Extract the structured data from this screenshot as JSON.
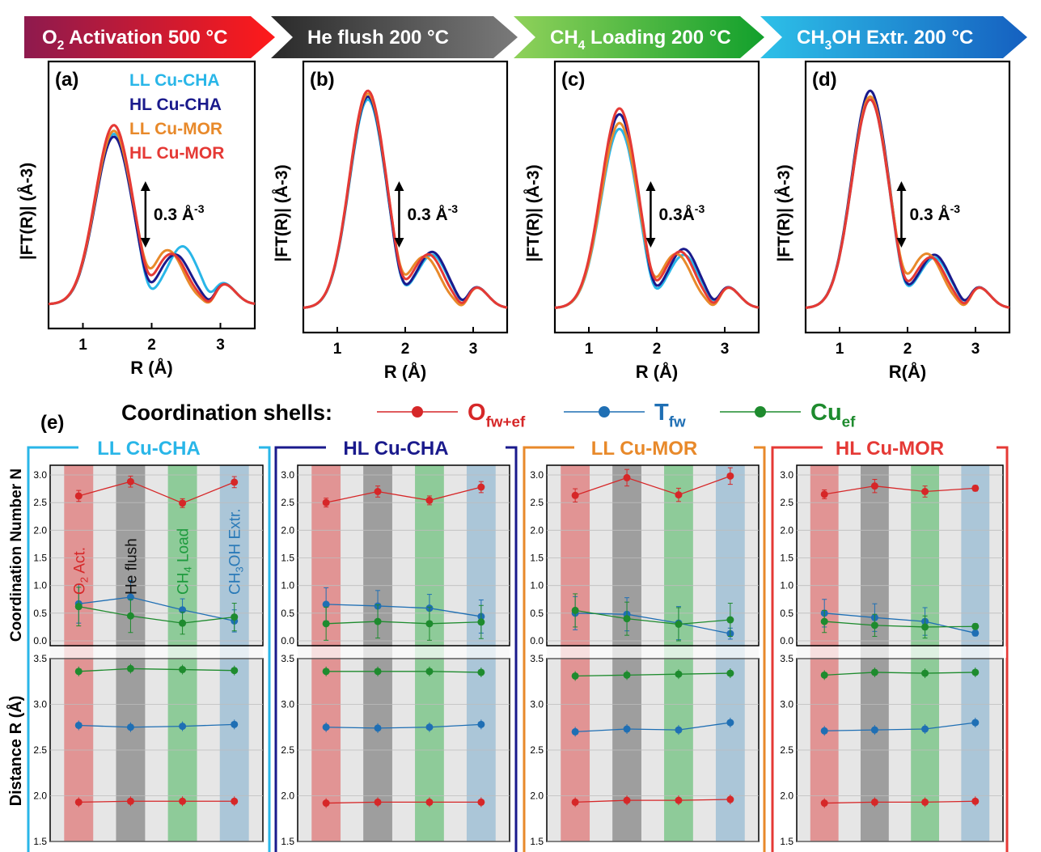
{
  "banner": {
    "steps": [
      {
        "label": "O2 Activation 500 °C",
        "sub": "2",
        "color": "#c0392b"
      },
      {
        "label": "He flush 200 °C",
        "color": "#4a4a4a"
      },
      {
        "label": "CH4 Loading 200 °C",
        "sub": "4",
        "color": "#3fae49"
      },
      {
        "label": "CH3OH Extr. 200 °C",
        "sub": "3",
        "color": "#1e88c8"
      }
    ]
  },
  "legend_top": {
    "entries": [
      {
        "name": "LL Cu-CHA",
        "color": "#29b6e8"
      },
      {
        "name": "HL Cu-CHA",
        "color": "#1a1a8c"
      },
      {
        "name": "LL Cu-MOR",
        "color": "#e8892a"
      },
      {
        "name": "HL Cu-MOR",
        "color": "#e53935"
      }
    ]
  },
  "ft_panels": [
    {
      "label": "(a)",
      "scale_label": "0.3 Å-3",
      "ylabel": "|FT(R)| (Å-3)",
      "xlabel": "R (Å)"
    },
    {
      "label": "(b)",
      "scale_label": "0.3 Å-3",
      "ylabel": "|FT(R)| (Å-3)",
      "xlabel": "R (Å)"
    },
    {
      "label": "(c)",
      "scale_label": "0.3Å-3",
      "ylabel": "|FT(R)| (Å-3)",
      "xlabel": "R (Å)"
    },
    {
      "label": "(d)",
      "scale_label": "0.3 Å-3",
      "ylabel": "|FT(R)| (Å-3)",
      "xlabel": "R(Å)"
    }
  ],
  "shells_legend": {
    "title": "Coordination shells:",
    "entries": [
      {
        "name": "O",
        "sub": "fw+ef",
        "color": "#d62728"
      },
      {
        "name": "T",
        "sub": "fw",
        "color": "#1f6fb4"
      },
      {
        "name": "Cu",
        "sub": "ef",
        "color": "#1e8b2e"
      }
    ]
  },
  "panel_e_label": "(e)",
  "cn_ylabel": "Coordination Number N",
  "dist_ylabel": "Distance R (Å)",
  "step_labels": [
    "O2 Act.",
    "He flush",
    "CH4 Load",
    "CH3OH Extr."
  ],
  "chart_data": [
    {
      "type": "line",
      "name": "FT(R) (a) O2 Activation",
      "x_ticks": [
        1,
        2,
        3
      ],
      "xlim": [
        0.5,
        3.5
      ],
      "series": [
        {
          "name": "LL Cu-CHA",
          "peak1": 2.95,
          "peak2_pos": 2.45,
          "peak2": 1.0
        },
        {
          "name": "HL Cu-CHA",
          "peak1": 2.9,
          "peak2_pos": 2.35,
          "peak2": 0.85
        },
        {
          "name": "LL Cu-MOR",
          "peak1": 3.0,
          "peak2_pos": 2.25,
          "peak2": 0.9
        },
        {
          "name": "HL Cu-MOR",
          "peak1": 3.1,
          "peak2_pos": 2.3,
          "peak2": 0.85
        }
      ]
    },
    {
      "type": "line",
      "name": "FT(R) (b) He flush",
      "x_ticks": [
        1,
        2,
        3
      ],
      "xlim": [
        0.5,
        3.5
      ],
      "series": [
        {
          "name": "LL Cu-CHA",
          "peak1": 3.55,
          "peak2_pos": 2.4,
          "peak2": 0.9
        },
        {
          "name": "HL Cu-CHA",
          "peak1": 3.6,
          "peak2_pos": 2.4,
          "peak2": 0.95
        },
        {
          "name": "LL Cu-MOR",
          "peak1": 3.65,
          "peak2_pos": 2.3,
          "peak2": 0.85
        },
        {
          "name": "HL Cu-MOR",
          "peak1": 3.7,
          "peak2_pos": 2.35,
          "peak2": 0.9
        }
      ]
    },
    {
      "type": "line",
      "name": "FT(R) (c) CH4 Loading",
      "x_ticks": [
        1,
        2,
        3
      ],
      "xlim": [
        0.5,
        3.5
      ],
      "series": [
        {
          "name": "LL Cu-CHA",
          "peak1": 3.05,
          "peak2_pos": 2.4,
          "peak2": 0.9
        },
        {
          "name": "HL Cu-CHA",
          "peak1": 3.3,
          "peak2_pos": 2.4,
          "peak2": 1.0
        },
        {
          "name": "LL Cu-MOR",
          "peak1": 3.15,
          "peak2_pos": 2.3,
          "peak2": 0.9
        },
        {
          "name": "HL Cu-MOR",
          "peak1": 3.4,
          "peak2_pos": 2.35,
          "peak2": 0.95
        }
      ]
    },
    {
      "type": "line",
      "name": "FT(R) (d) CH3OH Extraction",
      "x_ticks": [
        1,
        2,
        3
      ],
      "xlim": [
        0.5,
        3.5
      ],
      "series": [
        {
          "name": "LL Cu-CHA",
          "peak1": 3.55,
          "peak2_pos": 2.4,
          "peak2": 0.85
        },
        {
          "name": "HL Cu-CHA",
          "peak1": 3.7,
          "peak2_pos": 2.4,
          "peak2": 0.9
        },
        {
          "name": "LL Cu-MOR",
          "peak1": 3.6,
          "peak2_pos": 2.3,
          "peak2": 0.9
        },
        {
          "name": "HL Cu-MOR",
          "peak1": 3.55,
          "peak2_pos": 2.35,
          "peak2": 0.85
        }
      ]
    },
    {
      "type": "scatter",
      "name": "LL Cu-CHA",
      "frame": "#29b6e8",
      "title_color": "#29b6e8",
      "cn_ylim": [
        0,
        3.0
      ],
      "cn_ticks": [
        0.0,
        0.5,
        1.0,
        1.5,
        2.0,
        2.5,
        3.0
      ],
      "d_ylim": [
        1.5,
        3.5
      ],
      "d_ticks": [
        1.5,
        2.0,
        2.5,
        3.0,
        3.5
      ],
      "cn": {
        "O": [
          2.62,
          2.88,
          2.49,
          2.87
        ],
        "T": [
          0.67,
          0.79,
          0.56,
          0.36
        ],
        "Cu": [
          0.62,
          0.45,
          0.32,
          0.43
        ]
      },
      "cn_err": {
        "O": [
          0.1,
          0.1,
          0.08,
          0.1
        ],
        "T": [
          0.35,
          0.3,
          0.2,
          0.2
        ],
        "Cu": [
          0.35,
          0.3,
          0.2,
          0.25
        ]
      },
      "dist": {
        "O": [
          1.93,
          1.94,
          1.94,
          1.94
        ],
        "T": [
          2.77,
          2.75,
          2.76,
          2.78
        ],
        "Cu": [
          3.36,
          3.39,
          3.38,
          3.37
        ]
      }
    },
    {
      "type": "scatter",
      "name": "HL Cu-CHA",
      "frame": "#1a1a8c",
      "title_color": "#1a1a8c",
      "cn_ylim": [
        0,
        3.0
      ],
      "cn_ticks": [
        0.0,
        0.5,
        1.0,
        1.5,
        2.0,
        2.5,
        3.0
      ],
      "d_ylim": [
        1.5,
        3.5
      ],
      "d_ticks": [
        1.5,
        2.0,
        2.5,
        3.0,
        3.5
      ],
      "cn": {
        "O": [
          2.5,
          2.7,
          2.54,
          2.78
        ],
        "T": [
          0.66,
          0.63,
          0.59,
          0.44
        ],
        "Cu": [
          0.31,
          0.35,
          0.31,
          0.34
        ]
      },
      "cn_err": {
        "O": [
          0.08,
          0.1,
          0.08,
          0.1
        ],
        "T": [
          0.3,
          0.28,
          0.25,
          0.3
        ],
        "Cu": [
          0.3,
          0.3,
          0.3,
          0.3
        ]
      },
      "dist": {
        "O": [
          1.92,
          1.93,
          1.93,
          1.93
        ],
        "T": [
          2.75,
          2.74,
          2.75,
          2.78
        ],
        "Cu": [
          3.36,
          3.36,
          3.36,
          3.35
        ]
      }
    },
    {
      "type": "scatter",
      "name": "LL Cu-MOR",
      "frame": "#e8892a",
      "title_color": "#e8892a",
      "cn_ylim": [
        0,
        3.0
      ],
      "cn_ticks": [
        0.0,
        0.5,
        1.0,
        1.5,
        2.0,
        2.5,
        3.0
      ],
      "d_ylim": [
        1.5,
        3.5
      ],
      "d_ticks": [
        1.5,
        2.0,
        2.5,
        3.0,
        3.5
      ],
      "cn": {
        "O": [
          2.63,
          2.95,
          2.64,
          2.98
        ],
        "T": [
          0.5,
          0.48,
          0.32,
          0.13
        ],
        "Cu": [
          0.55,
          0.4,
          0.3,
          0.38
        ]
      },
      "cn_err": {
        "O": [
          0.12,
          0.15,
          0.12,
          0.15
        ],
        "T": [
          0.3,
          0.3,
          0.3,
          0.1
        ],
        "Cu": [
          0.3,
          0.3,
          0.3,
          0.3
        ]
      },
      "dist": {
        "O": [
          1.93,
          1.95,
          1.95,
          1.96
        ],
        "T": [
          2.7,
          2.73,
          2.72,
          2.8
        ],
        "Cu": [
          3.31,
          3.32,
          3.33,
          3.34
        ]
      }
    },
    {
      "type": "scatter",
      "name": "HL Cu-MOR",
      "frame": "#e53935",
      "title_color": "#e53935",
      "cn_ylim": [
        0,
        3.0
      ],
      "cn_ticks": [
        0.0,
        0.5,
        1.0,
        1.5,
        2.0,
        2.5,
        3.0
      ],
      "d_ylim": [
        1.5,
        3.5
      ],
      "d_ticks": [
        1.5,
        2.0,
        2.5,
        3.0,
        3.5
      ],
      "cn": {
        "O": [
          2.65,
          2.8,
          2.7,
          2.76
        ],
        "T": [
          0.5,
          0.42,
          0.35,
          0.14
        ],
        "Cu": [
          0.35,
          0.28,
          0.25,
          0.26
        ]
      },
      "cn_err": {
        "O": [
          0.08,
          0.12,
          0.1,
          0.05
        ],
        "T": [
          0.25,
          0.25,
          0.25,
          0.05
        ],
        "Cu": [
          0.2,
          0.2,
          0.2,
          0.05
        ]
      },
      "dist": {
        "O": [
          1.92,
          1.93,
          1.93,
          1.94
        ],
        "T": [
          2.71,
          2.72,
          2.73,
          2.8
        ],
        "Cu": [
          3.32,
          3.35,
          3.34,
          3.35
        ]
      }
    }
  ]
}
